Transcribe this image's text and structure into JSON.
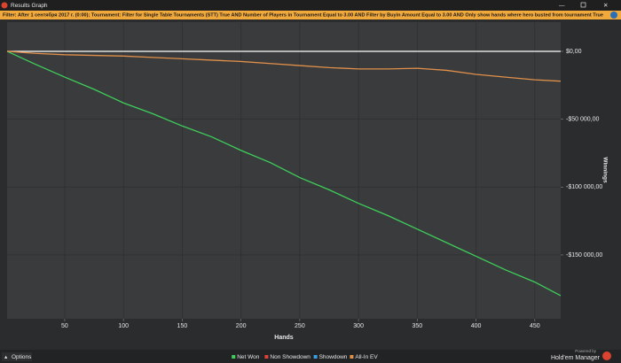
{
  "window_title": "Results Graph",
  "filter_label": "Filter:",
  "filter_text": "After 1 сентября 2017 г. (0:00); Tournament: Filter for Single Table Tournaments (STT) True AND Number of Players in Tournament Equal to 3.00 AND Filter by Buyin Amount Equal to 3.00 AND Only show hands where hero busted from tournament True",
  "options_button": "Options",
  "powered_by": "Powered by",
  "brand": "Hold'em Manager",
  "chart_data": {
    "type": "line",
    "x_label": "Hands",
    "y_label": "Winnings",
    "x": [
      1,
      25,
      50,
      75,
      100,
      125,
      150,
      175,
      200,
      225,
      250,
      275,
      300,
      325,
      350,
      375,
      400,
      425,
      450,
      472
    ],
    "series": [
      {
        "name": "Net Won",
        "color": "#3ecf5a",
        "values": [
          0,
          -9500,
          -19000,
          -28000,
          -38000,
          -46000,
          -55000,
          -63000,
          -73000,
          -82000,
          -93000,
          -102000,
          -112000,
          -121000,
          -131000,
          -141000,
          -151000,
          -161000,
          -170000,
          -180000
        ]
      },
      {
        "name": "Non Showdown",
        "color": "#e0413a",
        "values": [
          null,
          null,
          null,
          null,
          null,
          null,
          null,
          null,
          null,
          null,
          null,
          null,
          null,
          null,
          null,
          null,
          null,
          null,
          null,
          null
        ]
      },
      {
        "name": "Showdown",
        "color": "#3a9ee0",
        "values": [
          null,
          null,
          null,
          null,
          null,
          null,
          null,
          null,
          null,
          null,
          null,
          null,
          null,
          null,
          null,
          null,
          null,
          null,
          null,
          null
        ]
      },
      {
        "name": "All-In EV",
        "color": "#e0904a",
        "values": [
          0,
          -1500,
          -2500,
          -3000,
          -3500,
          -4500,
          -5500,
          -6500,
          -7500,
          -9000,
          -10500,
          -12000,
          -13000,
          -13000,
          -12500,
          -14000,
          -17000,
          -19000,
          -21000,
          -22000
        ]
      }
    ],
    "xlim": [
      1,
      472
    ],
    "xticks": [
      50,
      100,
      150,
      200,
      250,
      300,
      350,
      400,
      450
    ],
    "ylim": [
      -197000,
      21500
    ],
    "yticks": [
      {
        "value": 0,
        "label": "$0,00"
      },
      {
        "value": -50000,
        "label": "-$50 000,00"
      },
      {
        "value": -100000,
        "label": "-$100 000,00"
      },
      {
        "value": -150000,
        "label": "-$150 000,00"
      }
    ],
    "grid": true
  }
}
